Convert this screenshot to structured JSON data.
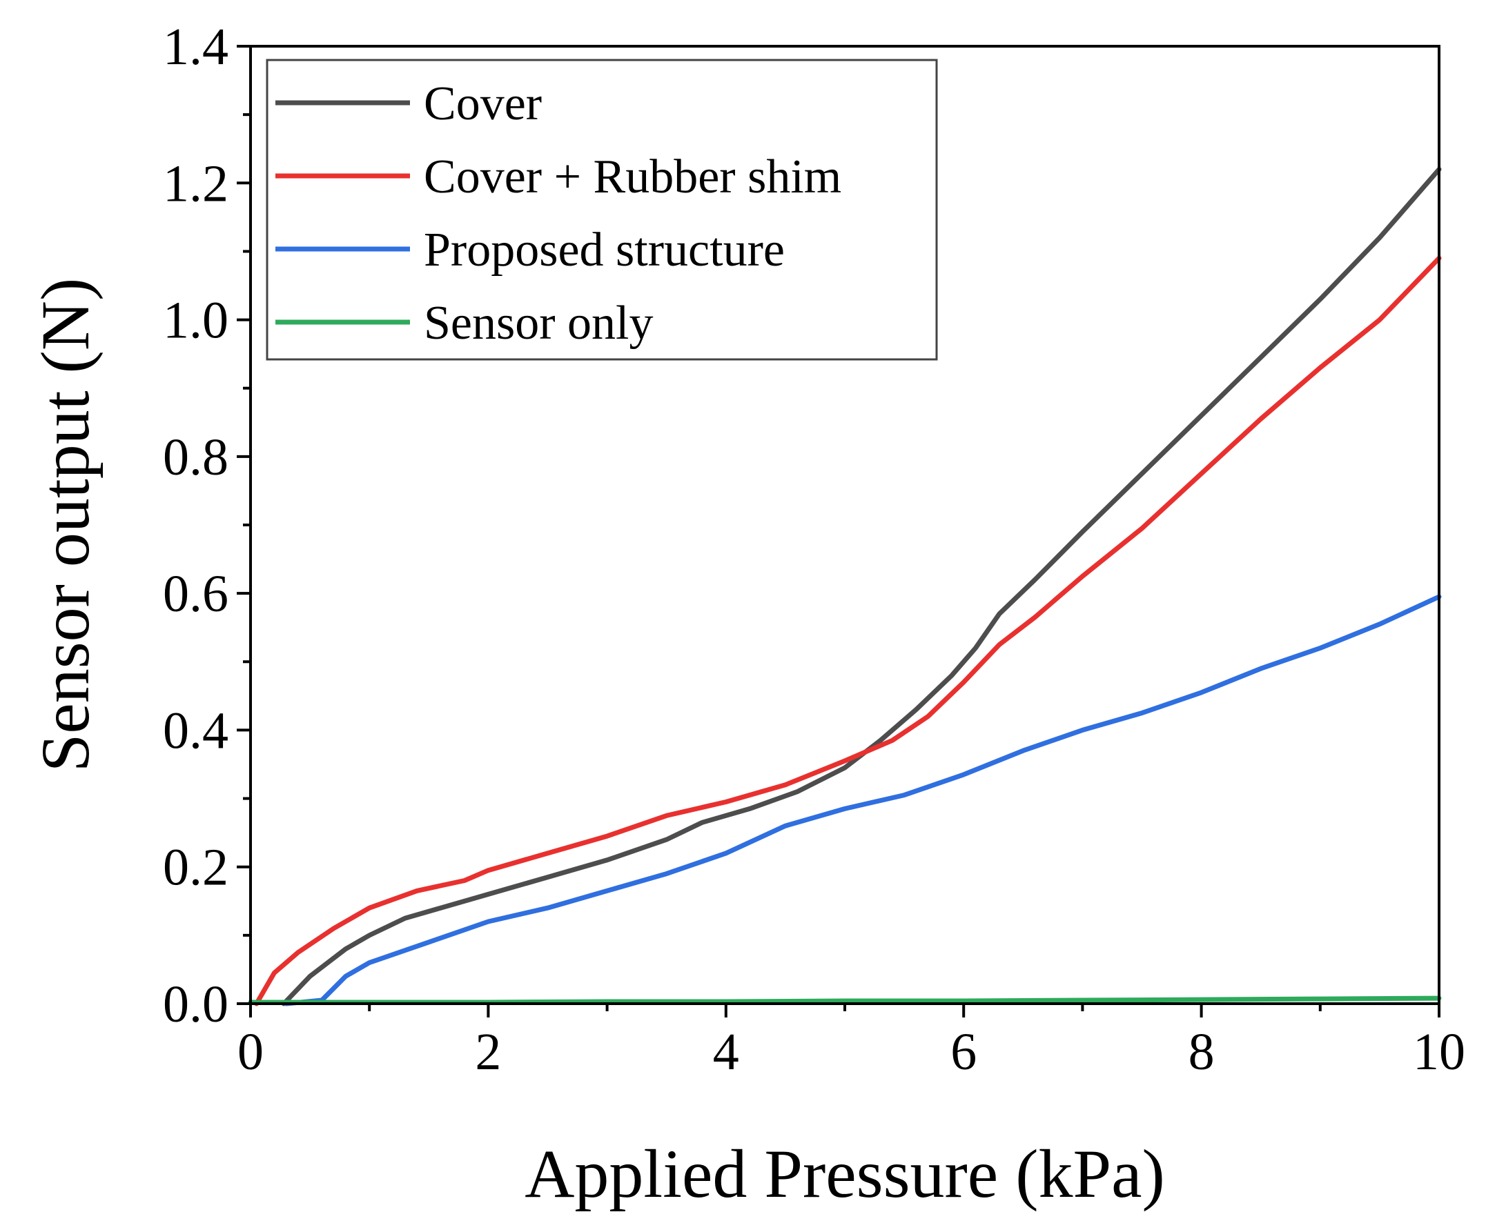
{
  "chart_data": {
    "type": "line",
    "title": "",
    "xlabel": "Applied Pressure (kPa)",
    "ylabel": "Sensor output (N)",
    "xlim": [
      0,
      10
    ],
    "ylim": [
      0,
      1.4
    ],
    "x_ticks": [
      0,
      2,
      4,
      6,
      8,
      10
    ],
    "x_tick_labels": [
      "0",
      "2",
      "4",
      "6",
      "8",
      "10"
    ],
    "y_ticks": [
      0.0,
      0.2,
      0.4,
      0.6,
      0.8,
      1.0,
      1.2,
      1.4
    ],
    "y_tick_labels": [
      "0.0",
      "0.2",
      "0.4",
      "0.6",
      "0.8",
      "1.0",
      "1.2",
      "1.4"
    ],
    "grid": false,
    "legend_position": "top-left",
    "series": [
      {
        "name": "Cover",
        "color": "#4d4d4d",
        "x": [
          0.28,
          0.5,
          0.8,
          1.0,
          1.3,
          1.6,
          2.0,
          2.5,
          3.0,
          3.5,
          3.8,
          4.2,
          4.6,
          5.0,
          5.3,
          5.6,
          5.9,
          6.1,
          6.3,
          6.6,
          7.0,
          7.5,
          8.0,
          8.5,
          9.0,
          9.5,
          10.0
        ],
        "values": [
          0.0,
          0.04,
          0.08,
          0.1,
          0.125,
          0.14,
          0.16,
          0.185,
          0.21,
          0.24,
          0.265,
          0.285,
          0.31,
          0.345,
          0.385,
          0.43,
          0.48,
          0.52,
          0.57,
          0.62,
          0.69,
          0.775,
          0.86,
          0.945,
          1.03,
          1.12,
          1.22
        ]
      },
      {
        "name": "Cover + Rubber shim",
        "color": "#e8312f",
        "x": [
          0.05,
          0.2,
          0.4,
          0.7,
          1.0,
          1.4,
          1.8,
          2.0,
          2.5,
          3.0,
          3.5,
          4.0,
          4.5,
          5.0,
          5.4,
          5.7,
          6.0,
          6.3,
          6.6,
          7.0,
          7.5,
          8.0,
          8.5,
          9.0,
          9.5,
          10.0
        ],
        "values": [
          0.0,
          0.045,
          0.075,
          0.11,
          0.14,
          0.165,
          0.18,
          0.195,
          0.22,
          0.245,
          0.275,
          0.295,
          0.32,
          0.355,
          0.385,
          0.42,
          0.47,
          0.525,
          0.565,
          0.625,
          0.695,
          0.775,
          0.855,
          0.93,
          1.0,
          1.09
        ]
      },
      {
        "name": "Proposed structure",
        "color": "#2f6fe0",
        "x": [
          0.3,
          0.6,
          0.8,
          1.0,
          1.5,
          2.0,
          2.5,
          3.0,
          3.5,
          4.0,
          4.5,
          5.0,
          5.5,
          6.0,
          6.5,
          7.0,
          7.5,
          8.0,
          8.5,
          9.0,
          9.5,
          10.0
        ],
        "values": [
          0.0,
          0.005,
          0.04,
          0.06,
          0.09,
          0.12,
          0.14,
          0.165,
          0.19,
          0.22,
          0.26,
          0.285,
          0.305,
          0.335,
          0.37,
          0.4,
          0.425,
          0.455,
          0.49,
          0.52,
          0.555,
          0.595
        ]
      },
      {
        "name": "Sensor only",
        "color": "#2eaa5c",
        "x": [
          0.0,
          1.0,
          2.0,
          3.0,
          4.0,
          5.0,
          6.0,
          7.0,
          8.0,
          9.0,
          10.0
        ],
        "values": [
          0.002,
          0.002,
          0.002,
          0.003,
          0.003,
          0.004,
          0.004,
          0.005,
          0.006,
          0.007,
          0.008
        ]
      }
    ]
  }
}
